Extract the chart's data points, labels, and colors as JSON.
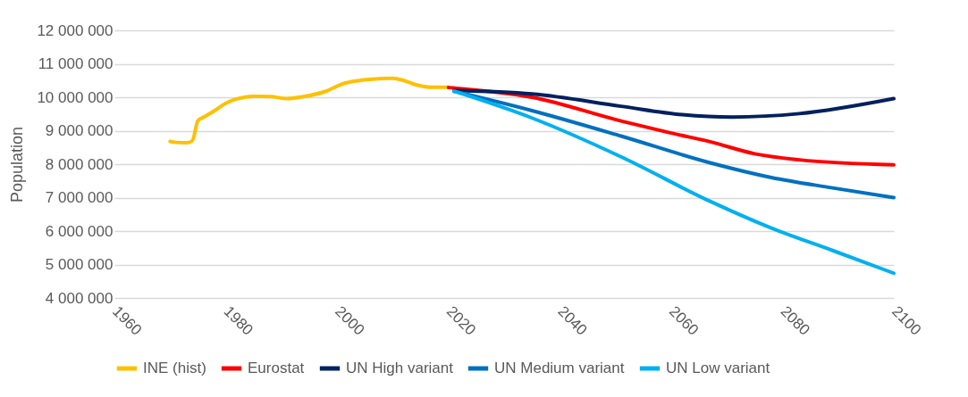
{
  "chart_data": {
    "type": "line",
    "ylabel": "Population",
    "xlim": [
      1960,
      2100
    ],
    "xticks": [
      1960,
      1980,
      2000,
      2020,
      2040,
      2060,
      2080,
      2100
    ],
    "ylim": [
      4000000,
      12000000
    ],
    "yticks": [
      {
        "value": 4000000,
        "label": "4 000 000"
      },
      {
        "value": 5000000,
        "label": "5 000 000"
      },
      {
        "value": 6000000,
        "label": "6 000 000"
      },
      {
        "value": 7000000,
        "label": "7 000 000"
      },
      {
        "value": 8000000,
        "label": "8 000 000"
      },
      {
        "value": 9000000,
        "label": "9 000 000"
      },
      {
        "value": 10000000,
        "label": "10 000 000"
      },
      {
        "value": 11000000,
        "label": "11 000 000"
      },
      {
        "value": 12000000,
        "label": "12 000 000"
      }
    ],
    "grid": "y",
    "legend": "bottom",
    "series": [
      {
        "name": "INE (hist)",
        "color": "#ffc000",
        "x": [
          1970,
          1971,
          1973,
          1974,
          1975,
          1976,
          1978,
          1980,
          1982,
          1985,
          1988,
          1991,
          1994,
          1998,
          2001,
          2004,
          2008,
          2010,
          2012,
          2014,
          2017,
          2020
        ],
        "values": [
          8680000,
          8650000,
          8640000,
          8700000,
          9300000,
          9400000,
          9600000,
          9820000,
          9950000,
          10030000,
          10020000,
          9960000,
          10020000,
          10180000,
          10400000,
          10500000,
          10560000,
          10570000,
          10500000,
          10380000,
          10300000,
          10300000
        ]
      },
      {
        "name": "Eurostat",
        "color": "#ff0000",
        "x": [
          2020,
          2035,
          2051,
          2060,
          2067,
          2075,
          2083,
          2100
        ],
        "values": [
          10290000,
          10000000,
          9290000,
          8930000,
          8670000,
          8310000,
          8130000,
          7980000
        ]
      },
      {
        "name": "UN High variant",
        "color": "#002060",
        "x": [
          2021,
          2035,
          2051,
          2062,
          2071,
          2083,
          2100
        ],
        "values": [
          10200000,
          10100000,
          9730000,
          9480000,
          9410000,
          9510000,
          9960000
        ]
      },
      {
        "name": "UN Medium variant",
        "color": "#0070c0",
        "x": [
          2021,
          2035,
          2051,
          2067,
          2078,
          2089,
          2100
        ],
        "values": [
          10180000,
          9600000,
          8840000,
          8040000,
          7600000,
          7290000,
          7000000
        ]
      },
      {
        "name": "UN Low variant",
        "color": "#00b0f0",
        "x": [
          2021,
          2035,
          2051,
          2067,
          2078,
          2089,
          2100
        ],
        "values": [
          10180000,
          9380000,
          8220000,
          6890000,
          6090000,
          5420000,
          4740000
        ]
      }
    ]
  }
}
